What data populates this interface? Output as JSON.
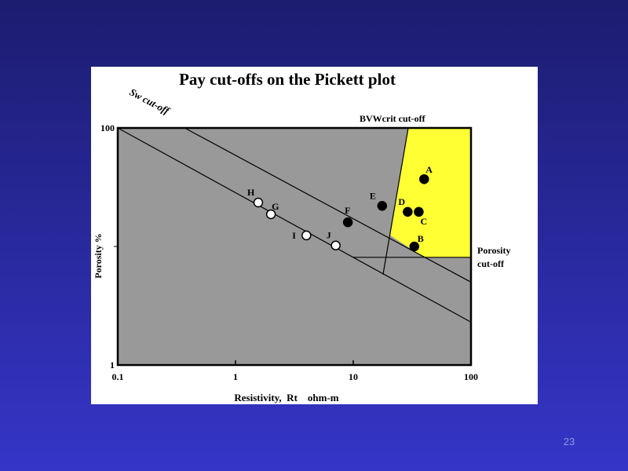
{
  "chart_data": {
    "type": "scatter",
    "title": "Pay cut-offs on the Pickett plot",
    "x_label": "Resistivity,  Rt    ohm-m",
    "y_label": "Porosity %",
    "xscale": "log",
    "yscale": "log",
    "xlim": [
      0.1,
      100
    ],
    "ylim": [
      1,
      100
    ],
    "xticks": [
      0.1,
      1,
      10,
      100
    ],
    "yticks": [
      1,
      100
    ],
    "yminor_ticks": [
      10
    ],
    "plot_color": "#999999",
    "series": [
      {
        "color": "#000000",
        "fill": "#000000",
        "labels": [
          "A",
          "B",
          "C",
          "D",
          "E",
          "F"
        ],
        "x": [
          40,
          33,
          36,
          29,
          17.6,
          9
        ],
        "values": [
          37,
          10,
          19.6,
          19.6,
          22,
          16
        ]
      },
      {
        "color": "#000000",
        "fill": "#ffffff",
        "labels": [
          "G",
          "H",
          "I",
          "J"
        ],
        "x": [
          2.0,
          1.56,
          4.0,
          7.1
        ],
        "values": [
          18.7,
          23.5,
          12.4,
          10.2
        ]
      }
    ],
    "sw_label": "Sw cut-off",
    "sw_lines": [
      {
        "x": [
          0.37,
          100
        ],
        "y": [
          100,
          5.0
        ]
      },
      {
        "x": [
          0.1,
          100
        ],
        "y": [
          100,
          2.3
        ]
      }
    ],
    "bvw_label": "BVWcrit cut-off",
    "bvw_line": {
      "x": [
        29.3,
        17.9
      ],
      "y": [
        100,
        5.8
      ]
    },
    "porosity_label": [
      "Porosity",
      "cut-off"
    ],
    "porosity_line": {
      "x": [
        10,
        100
      ],
      "y": [
        8.1,
        8.1
      ]
    },
    "pay_region": {
      "color": "#ffff33",
      "x": [
        29.3,
        100,
        100,
        40,
        20.6
      ],
      "y": [
        100,
        100,
        8.1,
        8.1,
        12.4
      ]
    }
  },
  "slide": {
    "page_number": "23"
  }
}
